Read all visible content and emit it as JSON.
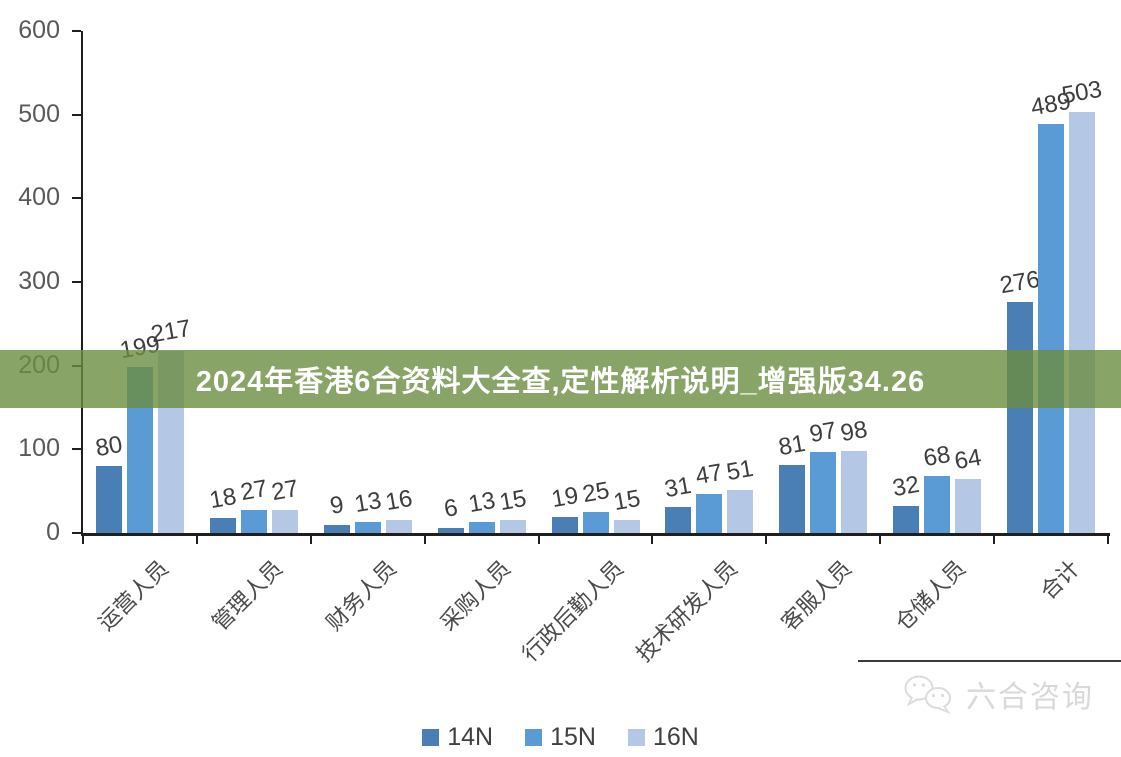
{
  "banner": {
    "text": "2024年香港6合资料大全查,定性解析说明_增强版34.26",
    "bg_color": "rgba(108,141,65,0.8)",
    "text_color": "#ffffff"
  },
  "watermark": {
    "text": "六合咨询",
    "icon": "wechat-icon",
    "color": "#d9d9d9"
  },
  "chart_data": {
    "type": "bar",
    "title": "",
    "xlabel": "",
    "ylabel": "",
    "categories": [
      "运营人员",
      "管理人员",
      "财务人员",
      "采购人员",
      "行政后勤人员",
      "技术研发人员",
      "客服人员",
      "仓储人员",
      "合计"
    ],
    "series": [
      {
        "name": "14N",
        "color": "#4a7fb5",
        "values": [
          80,
          18,
          9,
          6,
          19,
          31,
          81,
          32,
          276
        ]
      },
      {
        "name": "15N",
        "color": "#5b9bd5",
        "values": [
          199,
          27,
          13,
          13,
          25,
          47,
          97,
          68,
          489
        ]
      },
      {
        "name": "16N",
        "color": "#b4c8e5",
        "values": [
          217,
          27,
          16,
          15,
          15,
          51,
          98,
          64,
          503
        ]
      }
    ],
    "ylim": [
      0,
      600
    ],
    "yticks": [
      0,
      100,
      200,
      300,
      400,
      500,
      600
    ],
    "grid": false,
    "data_labels": true,
    "legend_position": "bottom",
    "axis_color": "#1f1f1f",
    "tick_label_color": "#595959",
    "data_label_color": "#3d3d3d"
  }
}
